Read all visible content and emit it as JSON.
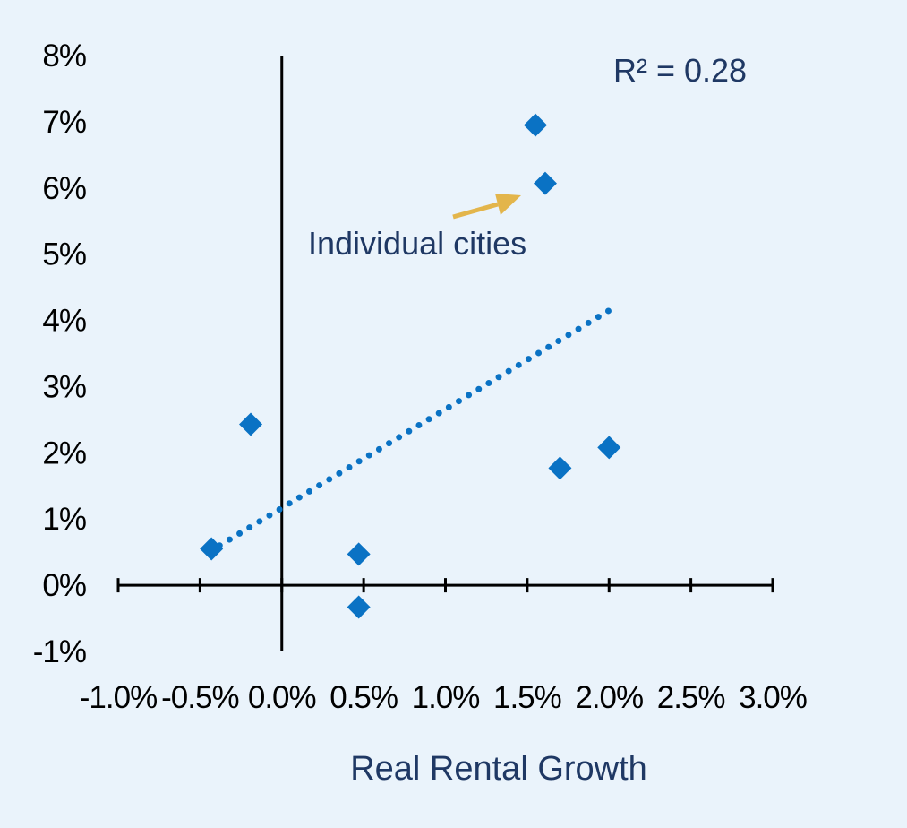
{
  "chart_data": {
    "type": "scatter",
    "xlabel": "Real Rental Growth",
    "ylabel": "",
    "x_tick_labels": [
      "-1.0%",
      "-0.5%",
      "0.0%",
      "0.5%",
      "1.0%",
      "1.5%",
      "2.0%",
      "2.5%",
      "3.0%"
    ],
    "y_tick_labels": [
      "-1%",
      "0%",
      "1%",
      "2%",
      "3%",
      "4%",
      "5%",
      "6%",
      "7%",
      "8%"
    ],
    "xlim": [
      -1.0,
      3.0
    ],
    "ylim": [
      -1,
      8
    ],
    "grid": false,
    "series": [
      {
        "points": [
          {
            "x": -0.43,
            "y": 0.55
          },
          {
            "x": -0.19,
            "y": 2.43
          },
          {
            "x": 0.47,
            "y": 0.47
          },
          {
            "x": 0.47,
            "y": -0.33
          },
          {
            "x": 1.55,
            "y": 6.95
          },
          {
            "x": 1.61,
            "y": 6.07
          },
          {
            "x": 1.7,
            "y": 1.77
          },
          {
            "x": 2.0,
            "y": 2.08
          }
        ],
        "color": "#0a72c4",
        "marker": "diamond"
      }
    ],
    "trendline": {
      "x": [
        -0.38,
        2.0
      ],
      "y": [
        0.6,
        4.15
      ],
      "style": "dotted",
      "color": "#0a72c4"
    },
    "annotations": [
      {
        "id": "r-squared",
        "text": "R² = 0.28"
      },
      {
        "id": "individual-cities",
        "text": "Individual cities"
      }
    ],
    "arrow_color": "#e3b54b"
  }
}
